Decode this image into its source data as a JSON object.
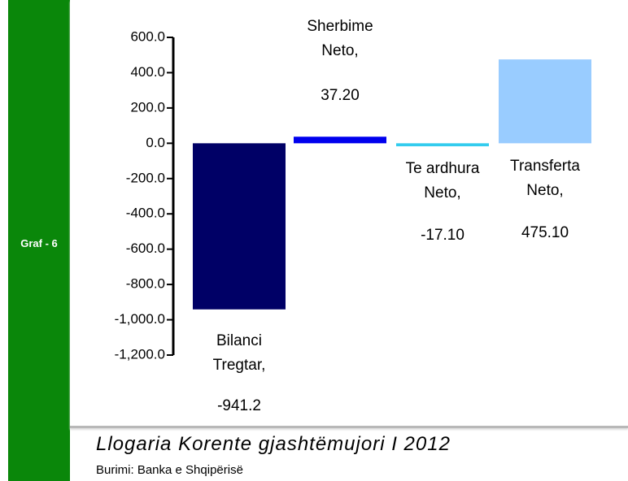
{
  "side_label": "Graf - 6",
  "chart_data": {
    "type": "bar",
    "title": "Llogaria Korente gjashtëmujori I 2012",
    "source": "Burimi: Banka e Shqipërisë",
    "categories": [
      "Bilanci Tregtar,",
      "Sherbime Neto,",
      "Te ardhura Neto,",
      "Transferta Neto,"
    ],
    "values": [
      -941.2,
      37.2,
      -17.1,
      475.1
    ],
    "value_labels": [
      "-941.2",
      "37.20",
      "-17.10",
      "475.10"
    ],
    "colors": [
      "#000066",
      "#0000ee",
      "#33ccee",
      "#99ccff"
    ],
    "ylim": [
      -1200,
      600
    ],
    "yticks": [
      {
        "value": 600,
        "label": "600.0"
      },
      {
        "value": 400,
        "label": "400.0"
      },
      {
        "value": 200,
        "label": "200.0"
      },
      {
        "value": 0,
        "label": "0.0"
      },
      {
        "value": -200,
        "label": "-200.0"
      },
      {
        "value": -400,
        "label": "-400.0"
      },
      {
        "value": -600,
        "label": "-600.0"
      },
      {
        "value": -800,
        "label": "-800.0"
      },
      {
        "value": -1000,
        "label": "-1,000.0"
      },
      {
        "value": -1200,
        "label": "-1,200.0"
      }
    ]
  }
}
